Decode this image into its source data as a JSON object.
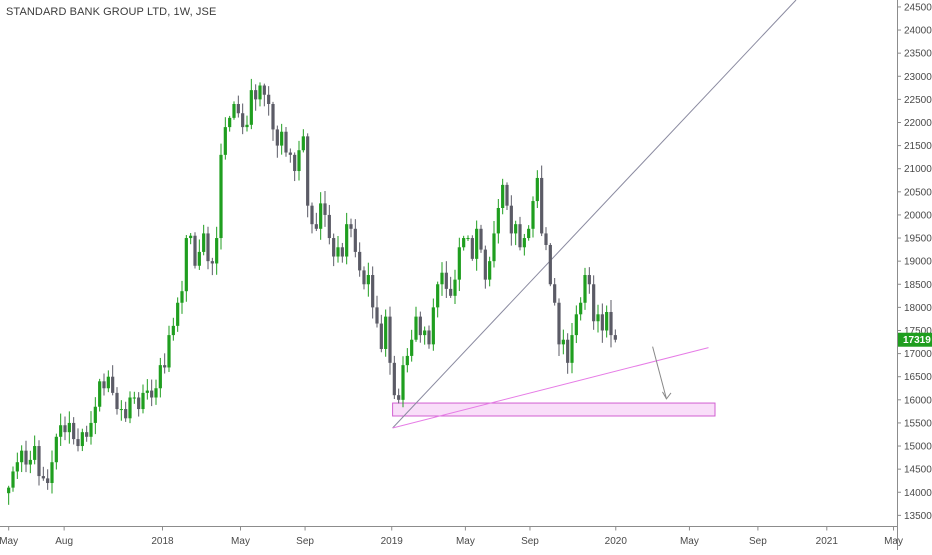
{
  "title": "STANDARD BANK GROUP LTD, 1W, JSE",
  "colors": {
    "up": "#1f9e1f",
    "down": "#5b5b66",
    "trendline": "#8a8aa0",
    "support_line": "#e67ce6",
    "zone_fill": "#f7d3f7",
    "zone_stroke": "#d15fd1",
    "arrow": "#888888",
    "price_badge": "#1f9e1f",
    "axis_text": "#4a4a4a"
  },
  "chart_data": {
    "type": "candlestick",
    "title": "STANDARD BANK GROUP LTD, 1W, JSE",
    "x_tick_labels": [
      "May",
      "Aug",
      "2018",
      "May",
      "Sep",
      "2019",
      "May",
      "Sep",
      "2020",
      "May",
      "Sep",
      "2021",
      "May"
    ],
    "x_tick_times": [
      0,
      12.8,
      35.5,
      53.5,
      68.4,
      88.4,
      105.4,
      120.3,
      140.1,
      157.1,
      172.9,
      188.8,
      204.2
    ],
    "y_ticks": [
      13500,
      14000,
      14500,
      15000,
      15500,
      16000,
      16500,
      17000,
      17500,
      18000,
      18500,
      19000,
      19500,
      20000,
      20500,
      21000,
      21500,
      22000,
      22500,
      23000,
      23500,
      24000,
      24500
    ],
    "ylim": [
      13270,
      24650
    ],
    "xlim": [
      -2,
      205
    ],
    "last_price": "17319",
    "series_close": [
      14100,
      14450,
      14650,
      14900,
      14600,
      14700,
      15000,
      14350,
      14300,
      14200,
      14650,
      15200,
      15450,
      15300,
      15500,
      15150,
      15000,
      15300,
      15200,
      15500,
      15850,
      16400,
      16250,
      16500,
      16150,
      15800,
      15800,
      15600,
      16050,
      16050,
      15800,
      16150,
      16200,
      16050,
      16250,
      16750,
      16700,
      17400,
      17600,
      18100,
      18350,
      19500,
      19550,
      18900,
      19200,
      19600,
      19000,
      18950,
      19500,
      21300,
      21900,
      22100,
      22400,
      22200,
      21900,
      21950,
      22700,
      22500,
      22800,
      22600,
      22400,
      21850,
      21500,
      21800,
      21350,
      21300,
      20950,
      21400,
      21700,
      20200,
      19800,
      19700,
      20250,
      20000,
      19500,
      19100,
      19300,
      19100,
      19800,
      19700,
      19200,
      18800,
      18500,
      18700,
      18000,
      17650,
      17100,
      17800,
      16800,
      16100,
      16000,
      16750,
      16950,
      17300,
      17800,
      17400,
      17500,
      17200,
      18000,
      18500,
      18750,
      18400,
      18250,
      18600,
      19300,
      19500,
      19500,
      19050,
      19700,
      19250,
      18600,
      19000,
      19600,
      20150,
      20650,
      20200,
      19600,
      19800,
      19300,
      19500,
      19700,
      20300,
      20800,
      19600,
      19350,
      18500,
      18100,
      17200,
      17300,
      16800,
      17400,
      17850,
      18100,
      18700,
      18500,
      17700,
      17850,
      17500,
      17900,
      17400,
      17300
    ]
  }
}
